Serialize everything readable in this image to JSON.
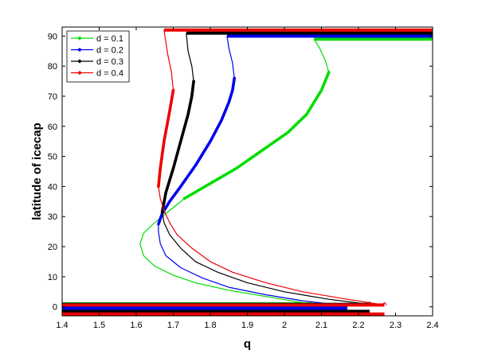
{
  "chart_data": {
    "type": "line",
    "title": "",
    "xlabel": "q",
    "ylabel": "latitude of icecap",
    "xlim": [
      1.4,
      2.4
    ],
    "ylim": [
      -3,
      93
    ],
    "xticks": [
      1.4,
      1.5,
      1.6,
      1.7,
      1.8,
      1.9,
      2.0,
      2.1,
      2.2,
      2.3,
      2.4
    ],
    "xtick_labels": [
      "1.4",
      "1.5",
      "1.6",
      "1.7",
      "1.8",
      "1.9",
      "2",
      "2.1",
      "2.2",
      "2.3",
      "2.4"
    ],
    "yticks": [
      0,
      10,
      20,
      30,
      40,
      50,
      60,
      70,
      80,
      90
    ],
    "ytick_labels": [
      "0",
      "10",
      "20",
      "30",
      "40",
      "50",
      "60",
      "70",
      "80",
      "90"
    ],
    "grid": false,
    "legend_position": "top-left",
    "series": [
      {
        "name": "d = 0.1",
        "color": "#00dd00",
        "thin_curve": [
          [
            2.07,
            1.0
          ],
          [
            1.97,
            3.0
          ],
          [
            1.85,
            5.5
          ],
          [
            1.76,
            8.0
          ],
          [
            1.7,
            10.5
          ],
          [
            1.65,
            13.5
          ],
          [
            1.62,
            17.0
          ],
          [
            1.61,
            21.0
          ],
          [
            1.62,
            24.5
          ],
          [
            1.65,
            28.0
          ],
          [
            1.68,
            31.0
          ],
          [
            1.71,
            34.0
          ],
          [
            1.73,
            36.0
          ]
        ],
        "thick_curve": [
          [
            1.73,
            36.0
          ],
          [
            1.8,
            41.0
          ],
          [
            1.87,
            46.0
          ],
          [
            1.94,
            52.0
          ],
          [
            2.01,
            58.0
          ],
          [
            2.06,
            64.0
          ],
          [
            2.1,
            72.0
          ],
          [
            2.12,
            78.0
          ]
        ],
        "top_curve": [
          [
            2.12,
            78.0
          ],
          [
            2.11,
            82.0
          ],
          [
            2.095,
            86.0
          ],
          [
            2.08,
            89.0
          ]
        ],
        "top_branch": {
          "x": [
            2.08,
            2.4
          ],
          "y": 89.0
        },
        "bottom_branch": {
          "x": [
            1.4,
            2.07
          ],
          "y": [
            1.0,
            0.0
          ]
        }
      },
      {
        "name": "d = 0.2",
        "color": "#0000ee",
        "thin_curve": [
          [
            2.17,
            0.3
          ],
          [
            2.05,
            2.0
          ],
          [
            1.95,
            4.0
          ],
          [
            1.85,
            6.5
          ],
          [
            1.78,
            9.5
          ],
          [
            1.72,
            13.0
          ],
          [
            1.68,
            17.0
          ],
          [
            1.665,
            21.0
          ],
          [
            1.66,
            25.0
          ],
          [
            1.66,
            27.5
          ]
        ],
        "thick_curve": [
          [
            1.66,
            27.5
          ],
          [
            1.67,
            31.0
          ],
          [
            1.69,
            35.0
          ],
          [
            1.72,
            40.0
          ],
          [
            1.76,
            47.0
          ],
          [
            1.8,
            55.0
          ],
          [
            1.83,
            62.0
          ],
          [
            1.85,
            68.0
          ],
          [
            1.86,
            72.0
          ],
          [
            1.865,
            76.0
          ]
        ],
        "top_curve": [
          [
            1.865,
            76.0
          ],
          [
            1.86,
            81.0
          ],
          [
            1.85,
            86.0
          ],
          [
            1.845,
            90.0
          ]
        ],
        "top_branch": {
          "x": [
            1.845,
            2.4
          ],
          "y": 90.0
        },
        "bottom_branch": {
          "x": [
            1.4,
            2.17
          ],
          "y": [
            0.3,
            -0.6
          ]
        }
      },
      {
        "name": "d = 0.3",
        "color": "#000000",
        "thin_curve": [
          [
            2.23,
            0.8
          ],
          [
            2.12,
            2.5
          ],
          [
            2.0,
            5.0
          ],
          [
            1.9,
            8.0
          ],
          [
            1.82,
            11.5
          ],
          [
            1.76,
            15.0
          ],
          [
            1.72,
            19.5
          ],
          [
            1.69,
            24.0
          ],
          [
            1.675,
            28.0
          ],
          [
            1.67,
            31.5
          ]
        ],
        "thick_curve": [
          [
            1.67,
            31.5
          ],
          [
            1.68,
            38.0
          ],
          [
            1.7,
            46.0
          ],
          [
            1.72,
            55.0
          ],
          [
            1.74,
            64.0
          ],
          [
            1.75,
            70.0
          ],
          [
            1.755,
            75.0
          ]
        ],
        "top_curve": [
          [
            1.755,
            75.0
          ],
          [
            1.75,
            80.0
          ],
          [
            1.74,
            85.0
          ],
          [
            1.735,
            91.0
          ]
        ],
        "top_branch": {
          "x": [
            1.735,
            2.4
          ],
          "y": 91.0
        },
        "bottom_branch": {
          "x": [
            1.4,
            2.23
          ],
          "y": [
            0.8,
            -1.5
          ]
        }
      },
      {
        "name": "d = 0.4",
        "color": "#ee0000",
        "thin_curve": [
          [
            2.27,
            0.6
          ],
          [
            2.17,
            2.5
          ],
          [
            2.05,
            5.0
          ],
          [
            1.95,
            8.0
          ],
          [
            1.86,
            11.5
          ],
          [
            1.8,
            15.0
          ],
          [
            1.75,
            19.5
          ],
          [
            1.71,
            24.0
          ],
          [
            1.69,
            28.0
          ],
          [
            1.675,
            32.0
          ],
          [
            1.665,
            36.0
          ],
          [
            1.66,
            40.0
          ]
        ],
        "thick_curve": [
          [
            1.66,
            40.0
          ],
          [
            1.665,
            46.0
          ],
          [
            1.675,
            55.0
          ],
          [
            1.69,
            65.0
          ],
          [
            1.7,
            72.0
          ]
        ],
        "top_curve": [
          [
            1.7,
            72.0
          ],
          [
            1.695,
            78.0
          ],
          [
            1.685,
            84.0
          ],
          [
            1.675,
            92.0
          ]
        ],
        "top_branch": {
          "x": [
            1.675,
            2.4
          ],
          "y": 92.0
        },
        "bottom_branch": {
          "x": [
            1.4,
            2.27
          ],
          "y": [
            0.6,
            -2.4
          ]
        }
      }
    ]
  }
}
